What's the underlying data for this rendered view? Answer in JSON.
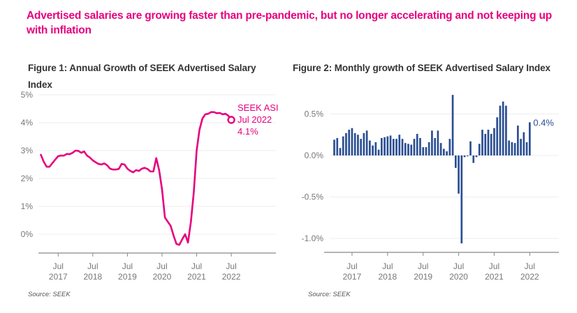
{
  "headline": "Advertised salaries are growing faster than pre-pandemic, but no longer accelerating and not keeping up with inflation",
  "colors": {
    "headline": "#e6007e",
    "line": "#e6007e",
    "bars": "#2b4f93",
    "grid": "#eeeeee",
    "axis": "#888888",
    "ticks": "#777777"
  },
  "chart_data": [
    {
      "type": "line",
      "title": "Figure 1: Annual Growth of SEEK Advertised Salary Index",
      "source": "Source: SEEK",
      "xlabel": "",
      "ylabel": "",
      "ylim": [
        -0.7,
        5
      ],
      "yticks": [
        0,
        1,
        2,
        3,
        4,
        5
      ],
      "ytick_labels": [
        "0%",
        "1%",
        "2%",
        "3%",
        "4%",
        "5%"
      ],
      "xticks": [
        {
          "label1": "Jul",
          "label2": "2017",
          "index": 6
        },
        {
          "label1": "Jul",
          "label2": "2018",
          "index": 18
        },
        {
          "label1": "Jul",
          "label2": "2019",
          "index": 30
        },
        {
          "label1": "Jul",
          "label2": "2020",
          "index": 42
        },
        {
          "label1": "Jul",
          "label2": "2021",
          "index": 54
        },
        {
          "label1": "Jul",
          "label2": "2022",
          "index": 66
        }
      ],
      "x_start": "Jan 2017",
      "x_end": "Jul 2022",
      "grid": true,
      "series": [
        {
          "name": "SEEK ASI",
          "values": [
            2.85,
            2.6,
            2.42,
            2.42,
            2.55,
            2.68,
            2.8,
            2.82,
            2.82,
            2.88,
            2.87,
            2.92,
            3.0,
            2.99,
            2.92,
            2.97,
            2.82,
            2.75,
            2.65,
            2.58,
            2.52,
            2.5,
            2.54,
            2.47,
            2.35,
            2.32,
            2.32,
            2.34,
            2.52,
            2.5,
            2.35,
            2.27,
            2.22,
            2.3,
            2.27,
            2.35,
            2.38,
            2.34,
            2.25,
            2.25,
            2.73,
            2.3,
            1.6,
            0.6,
            0.45,
            0.3,
            -0.05,
            -0.35,
            -0.38,
            -0.18,
            0.0,
            -0.3,
            0.45,
            1.5,
            3.0,
            3.75,
            4.15,
            4.3,
            4.32,
            4.38,
            4.38,
            4.34,
            4.35,
            4.3,
            4.32,
            4.25,
            4.1
          ]
        }
      ],
      "annotation": {
        "lines": [
          "SEEK ASI",
          "Jul 2022",
          "4.1%"
        ],
        "value": 4.1,
        "point": "Jul 2022"
      }
    },
    {
      "type": "bar",
      "title": "Figure 2: Monthly growth of SEEK Advertised Salary Index",
      "source": "Source: SEEK",
      "xlabel": "",
      "ylabel": "",
      "ylim": [
        -1.17,
        0.75
      ],
      "yticks": [
        -1.0,
        -0.5,
        0.0,
        0.5
      ],
      "ytick_labels": [
        "-1.0%",
        "-0.5%",
        "0.0%",
        "0.5%"
      ],
      "xticks": [
        {
          "label1": "Jul",
          "label2": "2017",
          "index": 6
        },
        {
          "label1": "Jul",
          "label2": "2018",
          "index": 18
        },
        {
          "label1": "Jul",
          "label2": "2019",
          "index": 30
        },
        {
          "label1": "Jul",
          "label2": "2020",
          "index": 42
        },
        {
          "label1": "Jul",
          "label2": "2021",
          "index": 54
        },
        {
          "label1": "Jul",
          "label2": "2022",
          "index": 66
        }
      ],
      "x_start": "Jan 2017",
      "x_end": "Jul 2022",
      "grid": true,
      "series": [
        {
          "name": "Monthly growth",
          "values": [
            0.19,
            0.21,
            0.09,
            0.23,
            0.27,
            0.31,
            0.33,
            0.27,
            0.25,
            0.2,
            0.27,
            0.3,
            0.18,
            0.12,
            0.16,
            0.07,
            0.21,
            0.22,
            0.23,
            0.24,
            0.2,
            0.2,
            0.25,
            0.2,
            0.15,
            0.14,
            0.13,
            0.2,
            0.26,
            0.21,
            0.1,
            0.1,
            0.16,
            0.3,
            0.21,
            0.3,
            0.15,
            0.08,
            0.05,
            0.2,
            0.73,
            -0.15,
            -0.46,
            -1.06,
            -0.02,
            -0.01,
            0.17,
            -0.09,
            -0.02,
            0.14,
            0.31,
            0.26,
            0.31,
            0.26,
            0.33,
            0.46,
            0.6,
            0.65,
            0.6,
            0.18,
            0.16,
            0.15,
            0.36,
            0.2,
            0.28,
            0.16,
            0.4
          ]
        }
      ],
      "annotation": {
        "text": "0.4%",
        "value": 0.4,
        "point": "Jul 2022"
      }
    }
  ]
}
